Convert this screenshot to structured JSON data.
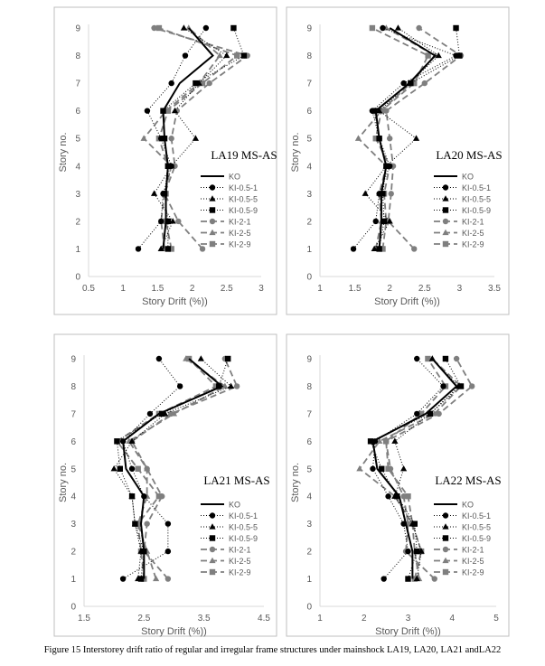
{
  "caption": "Figure 15 Interstorey drift ratio of regular and irregular frame structures under mainshock LA19, LA20, LA21 andLA22",
  "legend_labels": [
    "KO",
    "KI-0.5-1",
    "KI-0.5-5",
    "KI-0.5-9",
    "KI-2-1",
    "KI-2-5",
    "KI-2-9"
  ],
  "colors": {
    "line": "#000000",
    "dashed": "#7f7f7f",
    "frame": "#bfbfbf",
    "axis": "#d9d9d9",
    "text": "#595959"
  },
  "chart_data": [
    {
      "type": "line",
      "title": "LA19 MS-AS",
      "xlabel": "Story Drift (%))",
      "ylabel": "Story no.",
      "xlim": [
        0.5,
        3
      ],
      "ylim": [
        0,
        9
      ],
      "xticks": [
        "0.5",
        "1",
        "1.5",
        "2",
        "2.5",
        "3"
      ],
      "yticks": [
        "0",
        "1",
        "2",
        "3",
        "4",
        "5",
        "6",
        "7",
        "8",
        "9"
      ],
      "legend_position": "right",
      "series": [
        {
          "name": "KO",
          "x": [
            1.58,
            1.62,
            1.62,
            1.65,
            1.6,
            1.58,
            1.82,
            2.3,
            1.95
          ]
        },
        {
          "name": "KI-0.5-1",
          "x": [
            1.22,
            1.55,
            1.58,
            1.7,
            1.55,
            1.35,
            1.7,
            1.9,
            2.2
          ]
        },
        {
          "name": "KI-0.5-5",
          "x": [
            1.55,
            1.72,
            1.45,
            1.7,
            2.05,
            1.75,
            2.1,
            2.5,
            1.88
          ]
        },
        {
          "name": "KI-0.5-9",
          "x": [
            1.65,
            1.65,
            1.6,
            1.65,
            1.6,
            1.58,
            2.05,
            2.75,
            2.6
          ]
        },
        {
          "name": "KI-2-1",
          "x": [
            2.15,
            1.8,
            1.6,
            1.75,
            1.7,
            1.78,
            2.25,
            2.8,
            1.45
          ]
        },
        {
          "name": "KI-2-5",
          "x": [
            1.6,
            1.55,
            1.6,
            1.7,
            1.3,
            1.62,
            2.1,
            2.4,
            1.95
          ]
        },
        {
          "name": "KI-2-9",
          "x": [
            1.7,
            1.62,
            1.62,
            1.65,
            1.52,
            1.65,
            2.15,
            2.65,
            1.52
          ]
        }
      ]
    },
    {
      "type": "line",
      "title": "LA20 MS-AS",
      "xlabel": "Story Drift (%))",
      "ylabel": "Story no.",
      "xlim": [
        1,
        3.5
      ],
      "ylim": [
        0,
        9
      ],
      "xticks": [
        "1",
        "1.5",
        "2",
        "2.5",
        "3",
        "3.5"
      ],
      "yticks": [
        "0",
        "1",
        "2",
        "3",
        "4",
        "5",
        "6",
        "7",
        "8",
        "9"
      ],
      "legend_position": "right",
      "series": [
        {
          "name": "KO",
          "x": [
            1.85,
            1.88,
            1.88,
            1.95,
            1.85,
            1.8,
            2.28,
            2.65,
            2.0
          ]
        },
        {
          "name": "KI-0.5-1",
          "x": [
            1.48,
            1.8,
            1.85,
            2.0,
            1.85,
            1.75,
            2.2,
            2.95,
            1.9
          ]
        },
        {
          "name": "KI-0.5-5",
          "x": [
            1.78,
            2.0,
            1.65,
            1.95,
            2.38,
            1.85,
            2.28,
            2.7,
            2.12
          ]
        },
        {
          "name": "KI-0.5-9",
          "x": [
            1.85,
            1.92,
            1.9,
            1.95,
            1.85,
            1.78,
            2.3,
            3.0,
            2.95
          ]
        },
        {
          "name": "KI-2-1",
          "x": [
            2.35,
            1.98,
            2.02,
            2.05,
            2.0,
            1.95,
            2.5,
            3.02,
            2.42
          ]
        },
        {
          "name": "KI-2-5",
          "x": [
            1.8,
            1.88,
            1.85,
            1.95,
            1.55,
            1.88,
            2.3,
            2.65,
            1.95
          ]
        },
        {
          "name": "KI-2-9",
          "x": [
            1.9,
            1.95,
            1.92,
            2.0,
            1.8,
            1.88,
            2.35,
            2.55,
            1.75
          ]
        }
      ]
    },
    {
      "type": "line",
      "title": "LA21 MS-AS",
      "xlabel": "Story Drift (%))",
      "ylabel": "Story no.",
      "xlim": [
        1.5,
        4.5
      ],
      "ylim": [
        0,
        9
      ],
      "xticks": [
        "1.5",
        "2.5",
        "3.5",
        "4.5"
      ],
      "yticks": [
        "0",
        "1",
        "2",
        "3",
        "4",
        "5",
        "6",
        "7",
        "8",
        "9"
      ],
      "legend_position": "right",
      "series": [
        {
          "name": "KO",
          "x": [
            2.5,
            2.5,
            2.45,
            2.5,
            2.2,
            2.15,
            2.75,
            3.8,
            3.25
          ]
        },
        {
          "name": "KI-0.5-1",
          "x": [
            2.15,
            2.9,
            2.9,
            2.5,
            2.3,
            2.15,
            2.6,
            3.1,
            2.75
          ]
        },
        {
          "name": "KI-0.5-5",
          "x": [
            2.4,
            2.45,
            2.35,
            2.3,
            2.0,
            2.3,
            2.85,
            3.95,
            3.45
          ]
        },
        {
          "name": "KI-0.5-9",
          "x": [
            2.45,
            2.5,
            2.35,
            2.3,
            2.1,
            2.05,
            2.8,
            3.75,
            3.9
          ]
        },
        {
          "name": "KI-2-1",
          "x": [
            2.9,
            2.5,
            2.55,
            2.8,
            2.55,
            2.3,
            2.95,
            4.05,
            3.85
          ]
        },
        {
          "name": "KI-2-5",
          "x": [
            2.7,
            2.55,
            2.4,
            2.55,
            2.55,
            2.25,
            3.0,
            3.85,
            3.2
          ]
        },
        {
          "name": "KI-2-9",
          "x": [
            2.5,
            2.45,
            2.4,
            2.75,
            2.4,
            2.05,
            2.75,
            3.7,
            3.25
          ]
        }
      ]
    },
    {
      "type": "line",
      "title": "LA22 MS-AS",
      "xlabel": "Story Drift (%))",
      "ylabel": "Story no.",
      "xlim": [
        1,
        5
      ],
      "ylim": [
        0,
        9
      ],
      "xticks": [
        "1",
        "2",
        "3",
        "4",
        "5"
      ],
      "yticks": [
        "0",
        "1",
        "2",
        "3",
        "4",
        "5",
        "6",
        "7",
        "8",
        "9"
      ],
      "legend_position": "right",
      "series": [
        {
          "name": "KO",
          "x": [
            3.1,
            3.1,
            2.95,
            2.8,
            2.3,
            2.2,
            3.4,
            4.1,
            3.55
          ]
        },
        {
          "name": "KI-0.5-1",
          "x": [
            2.45,
            3.0,
            2.9,
            2.55,
            2.2,
            2.25,
            3.2,
            3.8,
            3.2
          ]
        },
        {
          "name": "KI-0.5-5",
          "x": [
            3.2,
            3.3,
            3.1,
            2.7,
            2.9,
            2.7,
            3.5,
            4.15,
            3.55
          ]
        },
        {
          "name": "KI-0.5-9",
          "x": [
            3.0,
            3.2,
            3.15,
            2.75,
            2.4,
            2.15,
            3.5,
            4.2,
            3.85
          ]
        },
        {
          "name": "KI-2-1",
          "x": [
            3.6,
            2.95,
            3.0,
            2.9,
            2.6,
            2.5,
            3.7,
            4.45,
            4.1
          ]
        },
        {
          "name": "KI-2-5",
          "x": [
            3.25,
            3.15,
            3.1,
            2.7,
            1.9,
            2.35,
            3.6,
            4.2,
            3.55
          ]
        },
        {
          "name": "KI-2-9",
          "x": [
            3.15,
            3.3,
            3.1,
            3.0,
            2.55,
            2.5,
            3.3,
            3.85,
            3.45
          ]
        }
      ]
    }
  ]
}
